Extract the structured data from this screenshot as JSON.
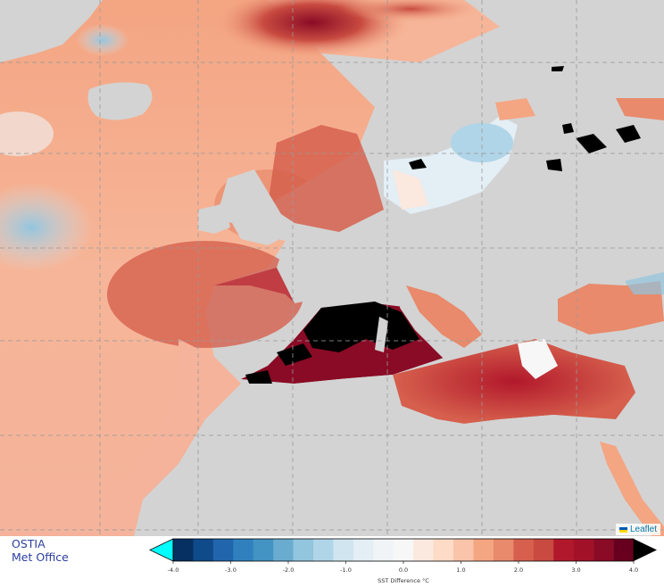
{
  "map": {
    "attribution": "Leaflet",
    "land_color": "#d3d3d3",
    "invalid_color": "#000000"
  },
  "footer": {
    "brand_line1": "OSTIA",
    "brand_line2": "Met Office"
  },
  "colorbar": {
    "label": "SST Difference °C",
    "min": -4.0,
    "max": 4.0,
    "ticks": [
      "-4.0",
      "-3.0",
      "-2.0",
      "-1.0",
      "0.0",
      "1.0",
      "2.0",
      "3.0",
      "4.0"
    ],
    "extend_low_color": "#00ffff",
    "extend_high_color": "#000000",
    "colors": [
      "#053061",
      "#0f4a8a",
      "#2166ac",
      "#3080bd",
      "#4393c3",
      "#6aacd0",
      "#92c5de",
      "#b0d5e8",
      "#d1e5f0",
      "#e3eef5",
      "#f0f4f7",
      "#f7f7f7",
      "#fbe8de",
      "#fddbc7",
      "#f9c4a9",
      "#f4a582",
      "#e88a6b",
      "#d6604d",
      "#c84a40",
      "#b2182b",
      "#a11228",
      "#8a0b25",
      "#67001f"
    ]
  }
}
